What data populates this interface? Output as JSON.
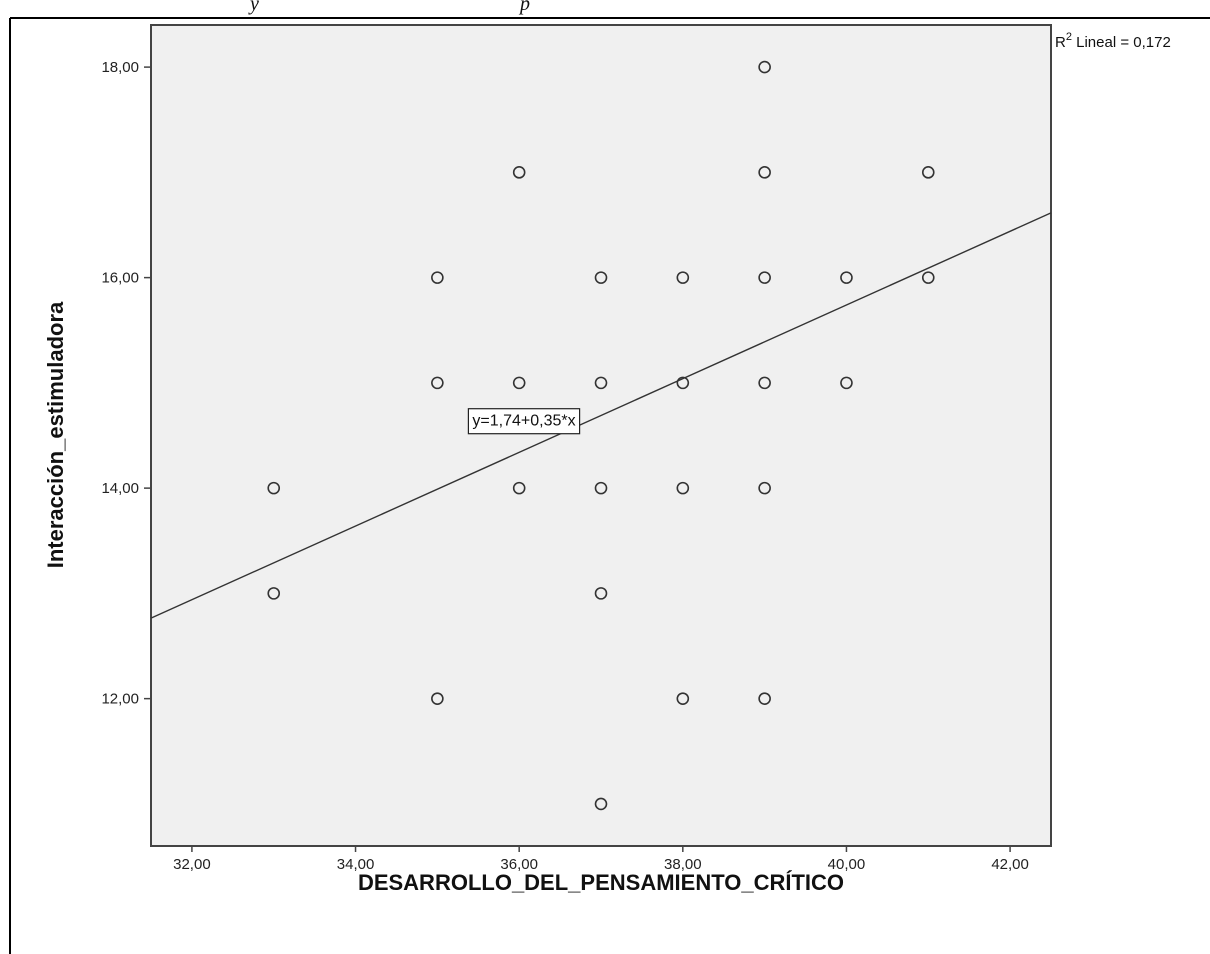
{
  "header_fragments": {
    "left": "y",
    "right": "p"
  },
  "chart_data": {
    "type": "scatter",
    "xlabel": "DESARROLLO_DEL_PENSAMIENTO_CRÍTICO",
    "ylabel": "Interacción_estimuladora",
    "xlim": [
      31.5,
      42.5
    ],
    "ylim": [
      10.6,
      18.4
    ],
    "x_ticks": [
      32,
      34,
      36,
      38,
      40,
      42
    ],
    "x_tick_labels": [
      "32,00",
      "34,00",
      "36,00",
      "38,00",
      "40,00",
      "42,00"
    ],
    "y_ticks": [
      12,
      14,
      16,
      18
    ],
    "y_tick_labels": [
      "12,00",
      "14,00",
      "16,00",
      "18,00"
    ],
    "grid": false,
    "plot_background": "#f0f0f0",
    "marker": "open-circle",
    "points": [
      {
        "x": 33,
        "y": 14
      },
      {
        "x": 33,
        "y": 13
      },
      {
        "x": 35,
        "y": 16
      },
      {
        "x": 35,
        "y": 15
      },
      {
        "x": 35,
        "y": 12
      },
      {
        "x": 36,
        "y": 17
      },
      {
        "x": 36,
        "y": 15
      },
      {
        "x": 36,
        "y": 14
      },
      {
        "x": 37,
        "y": 16
      },
      {
        "x": 37,
        "y": 15
      },
      {
        "x": 37,
        "y": 14
      },
      {
        "x": 37,
        "y": 13
      },
      {
        "x": 37,
        "y": 11
      },
      {
        "x": 38,
        "y": 16
      },
      {
        "x": 38,
        "y": 15
      },
      {
        "x": 38,
        "y": 14
      },
      {
        "x": 38,
        "y": 12
      },
      {
        "x": 39,
        "y": 18
      },
      {
        "x": 39,
        "y": 17
      },
      {
        "x": 39,
        "y": 16
      },
      {
        "x": 39,
        "y": 15
      },
      {
        "x": 39,
        "y": 14
      },
      {
        "x": 39,
        "y": 12
      },
      {
        "x": 40,
        "y": 16
      },
      {
        "x": 40,
        "y": 15
      },
      {
        "x": 41,
        "y": 17
      },
      {
        "x": 41,
        "y": 16
      }
    ],
    "fit_line": {
      "intercept": 1.74,
      "slope": 0.35,
      "label": "y=1,74+0,35*x",
      "label_anchor": {
        "x": 37.0,
        "y": 14.65
      }
    },
    "r_squared": {
      "prefix": "R",
      "superscript": "2",
      "text": " Lineal = 0,172"
    }
  }
}
